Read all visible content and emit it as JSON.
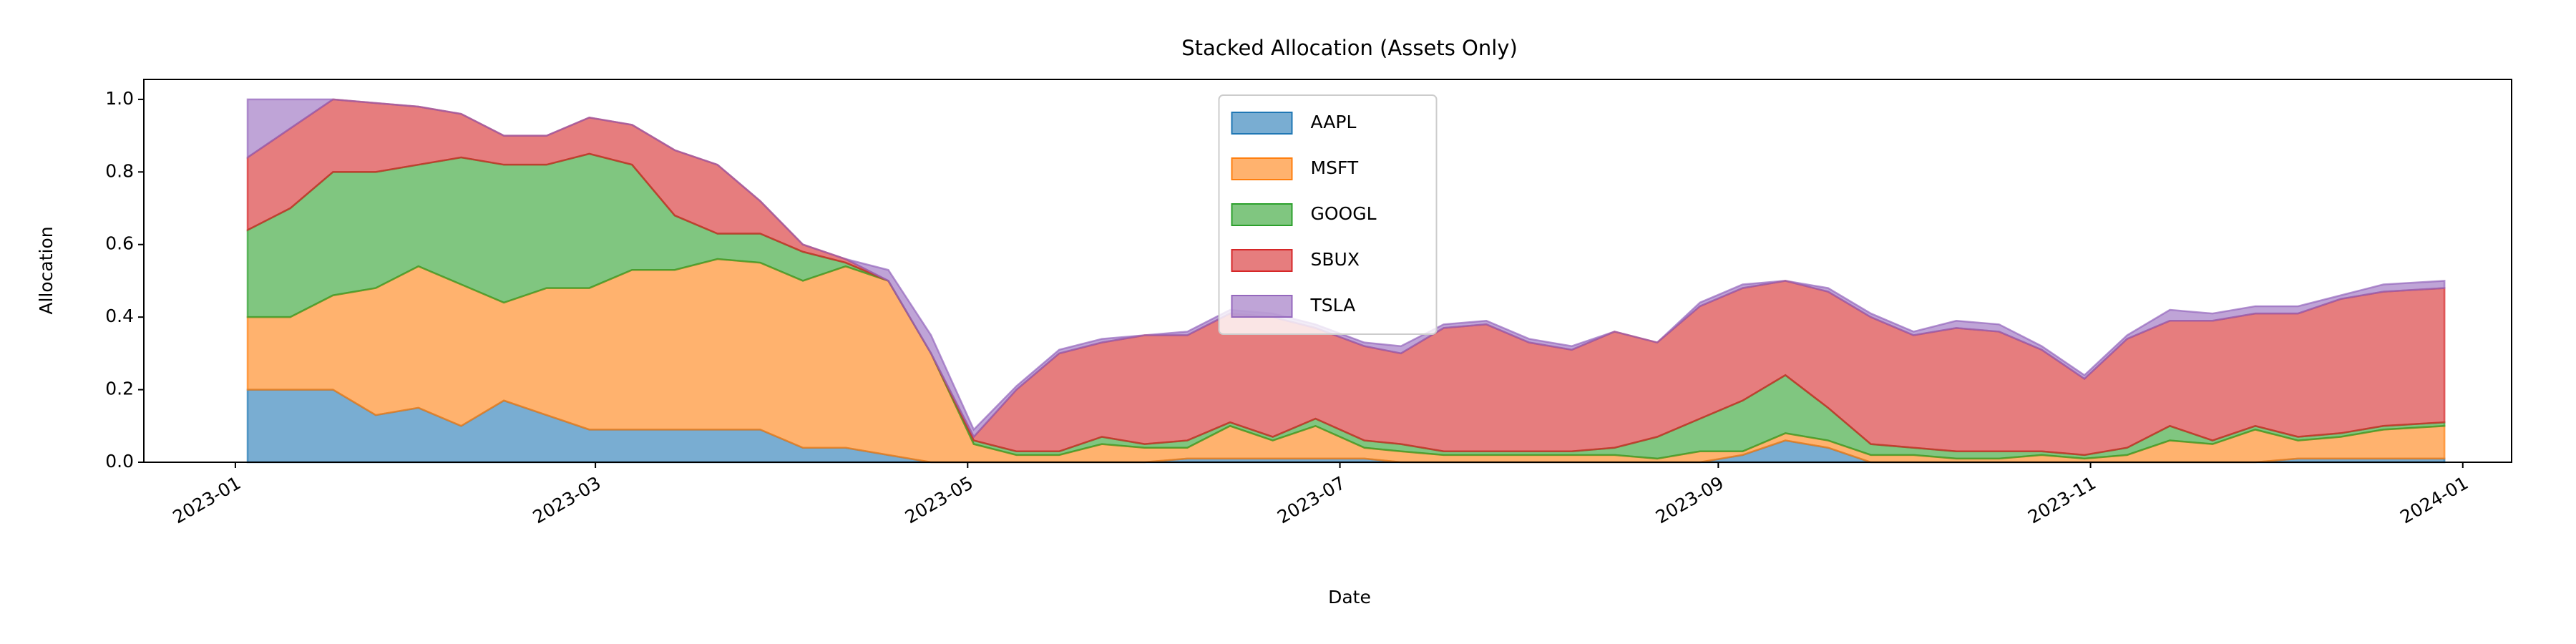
{
  "chart_data": {
    "type": "stackedarea",
    "title": "Stacked Allocation (Assets Only)",
    "x_label": "Date",
    "y_label": "Allocation",
    "x": [
      "2023-01-03",
      "2023-01-10",
      "2023-01-17",
      "2023-01-24",
      "2023-01-31",
      "2023-02-07",
      "2023-02-14",
      "2023-02-21",
      "2023-02-28",
      "2023-03-07",
      "2023-03-14",
      "2023-03-21",
      "2023-03-28",
      "2023-04-04",
      "2023-04-11",
      "2023-04-18",
      "2023-04-25",
      "2023-05-02",
      "2023-05-09",
      "2023-05-16",
      "2023-05-23",
      "2023-05-30",
      "2023-06-06",
      "2023-06-13",
      "2023-06-20",
      "2023-06-27",
      "2023-07-05",
      "2023-07-11",
      "2023-07-18",
      "2023-07-25",
      "2023-08-01",
      "2023-08-08",
      "2023-08-15",
      "2023-08-22",
      "2023-08-29",
      "2023-09-05",
      "2023-09-12",
      "2023-09-19",
      "2023-09-26",
      "2023-10-03",
      "2023-10-10",
      "2023-10-17",
      "2023-10-24",
      "2023-10-31",
      "2023-11-07",
      "2023-11-14",
      "2023-11-21",
      "2023-11-28",
      "2023-12-05",
      "2023-12-12",
      "2023-12-19",
      "2023-12-29"
    ],
    "series": [
      {
        "name": "AAPL",
        "color": "#1f77b4",
        "values": [
          0.2,
          0.2,
          0.2,
          0.13,
          0.15,
          0.1,
          0.17,
          0.13,
          0.09,
          0.09,
          0.09,
          0.09,
          0.09,
          0.04,
          0.04,
          0.02,
          0,
          0,
          0,
          0,
          0,
          0,
          0.01,
          0.01,
          0.01,
          0.01,
          0.01,
          0,
          0,
          0,
          0,
          0,
          0,
          0,
          0,
          0.02,
          0.06,
          0.04,
          0,
          0,
          0,
          0,
          0,
          0,
          0,
          0,
          0,
          0,
          0.01,
          0.01,
          0.01,
          0.01
        ]
      },
      {
        "name": "MSFT",
        "color": "#ff7f0e",
        "values": [
          0.2,
          0.2,
          0.26,
          0.35,
          0.39,
          0.39,
          0.27,
          0.35,
          0.39,
          0.44,
          0.44,
          0.47,
          0.46,
          0.46,
          0.5,
          0.48,
          0.3,
          0.05,
          0.02,
          0.02,
          0.05,
          0.04,
          0.03,
          0.09,
          0.05,
          0.09,
          0.03,
          0.03,
          0.02,
          0.02,
          0.02,
          0.02,
          0.02,
          0.01,
          0.03,
          0.01,
          0.02,
          0.02,
          0.02,
          0.02,
          0.01,
          0.01,
          0.02,
          0.01,
          0.02,
          0.06,
          0.05,
          0.09,
          0.05,
          0.06,
          0.08,
          0.09
        ]
      },
      {
        "name": "GOOGL",
        "color": "#2ca02c",
        "values": [
          0.24,
          0.3,
          0.34,
          0.32,
          0.28,
          0.35,
          0.38,
          0.34,
          0.37,
          0.29,
          0.15,
          0.07,
          0.08,
          0.08,
          0.01,
          0,
          0,
          0.01,
          0.01,
          0.01,
          0.02,
          0.01,
          0.02,
          0.01,
          0.01,
          0.02,
          0.02,
          0.02,
          0.01,
          0.01,
          0.01,
          0.01,
          0.02,
          0.06,
          0.09,
          0.14,
          0.16,
          0.09,
          0.03,
          0.02,
          0.02,
          0.02,
          0.01,
          0.01,
          0.02,
          0.04,
          0.01,
          0.01,
          0.01,
          0.01,
          0.01,
          0.01
        ]
      },
      {
        "name": "SBUX",
        "color": "#d62728",
        "values": [
          0.2,
          0.22,
          0.2,
          0.19,
          0.16,
          0.12,
          0.08,
          0.08,
          0.1,
          0.11,
          0.18,
          0.19,
          0.09,
          0.02,
          0.01,
          0,
          0,
          0.01,
          0.17,
          0.27,
          0.26,
          0.3,
          0.29,
          0.3,
          0.33,
          0.25,
          0.26,
          0.25,
          0.34,
          0.35,
          0.3,
          0.28,
          0.32,
          0.26,
          0.31,
          0.31,
          0.26,
          0.32,
          0.35,
          0.31,
          0.34,
          0.33,
          0.28,
          0.21,
          0.3,
          0.29,
          0.33,
          0.31,
          0.34,
          0.37,
          0.37,
          0.37
        ]
      },
      {
        "name": "TSLA",
        "color": "#9467bd",
        "values": [
          0.16,
          0.08,
          0,
          0,
          0,
          0,
          0,
          0,
          0,
          0,
          0,
          0,
          0,
          0,
          0,
          0.03,
          0.05,
          0.02,
          0.01,
          0.01,
          0.01,
          0,
          0.01,
          0.01,
          0.01,
          0.01,
          0.01,
          0.02,
          0.01,
          0.01,
          0.01,
          0.01,
          0,
          0,
          0.01,
          0.01,
          0,
          0.01,
          0.01,
          0.01,
          0.02,
          0.02,
          0.01,
          0.01,
          0.01,
          0.03,
          0.02,
          0.02,
          0.02,
          0.01,
          0.02,
          0.02
        ]
      }
    ],
    "xlim": [
      "2022-12-17",
      "2024-01-09"
    ],
    "xticks": [
      "2023-01",
      "2023-03",
      "2023-05",
      "2023-07",
      "2023-09",
      "2023-11",
      "2024-01"
    ],
    "ylim": [
      0,
      1.055
    ],
    "yticks": [
      {
        "value": 0,
        "label": "0.0"
      },
      0.2,
      0.4,
      0.6,
      0.8,
      {
        "value": 1,
        "label": "1.0"
      }
    ],
    "legend": "upper center"
  }
}
